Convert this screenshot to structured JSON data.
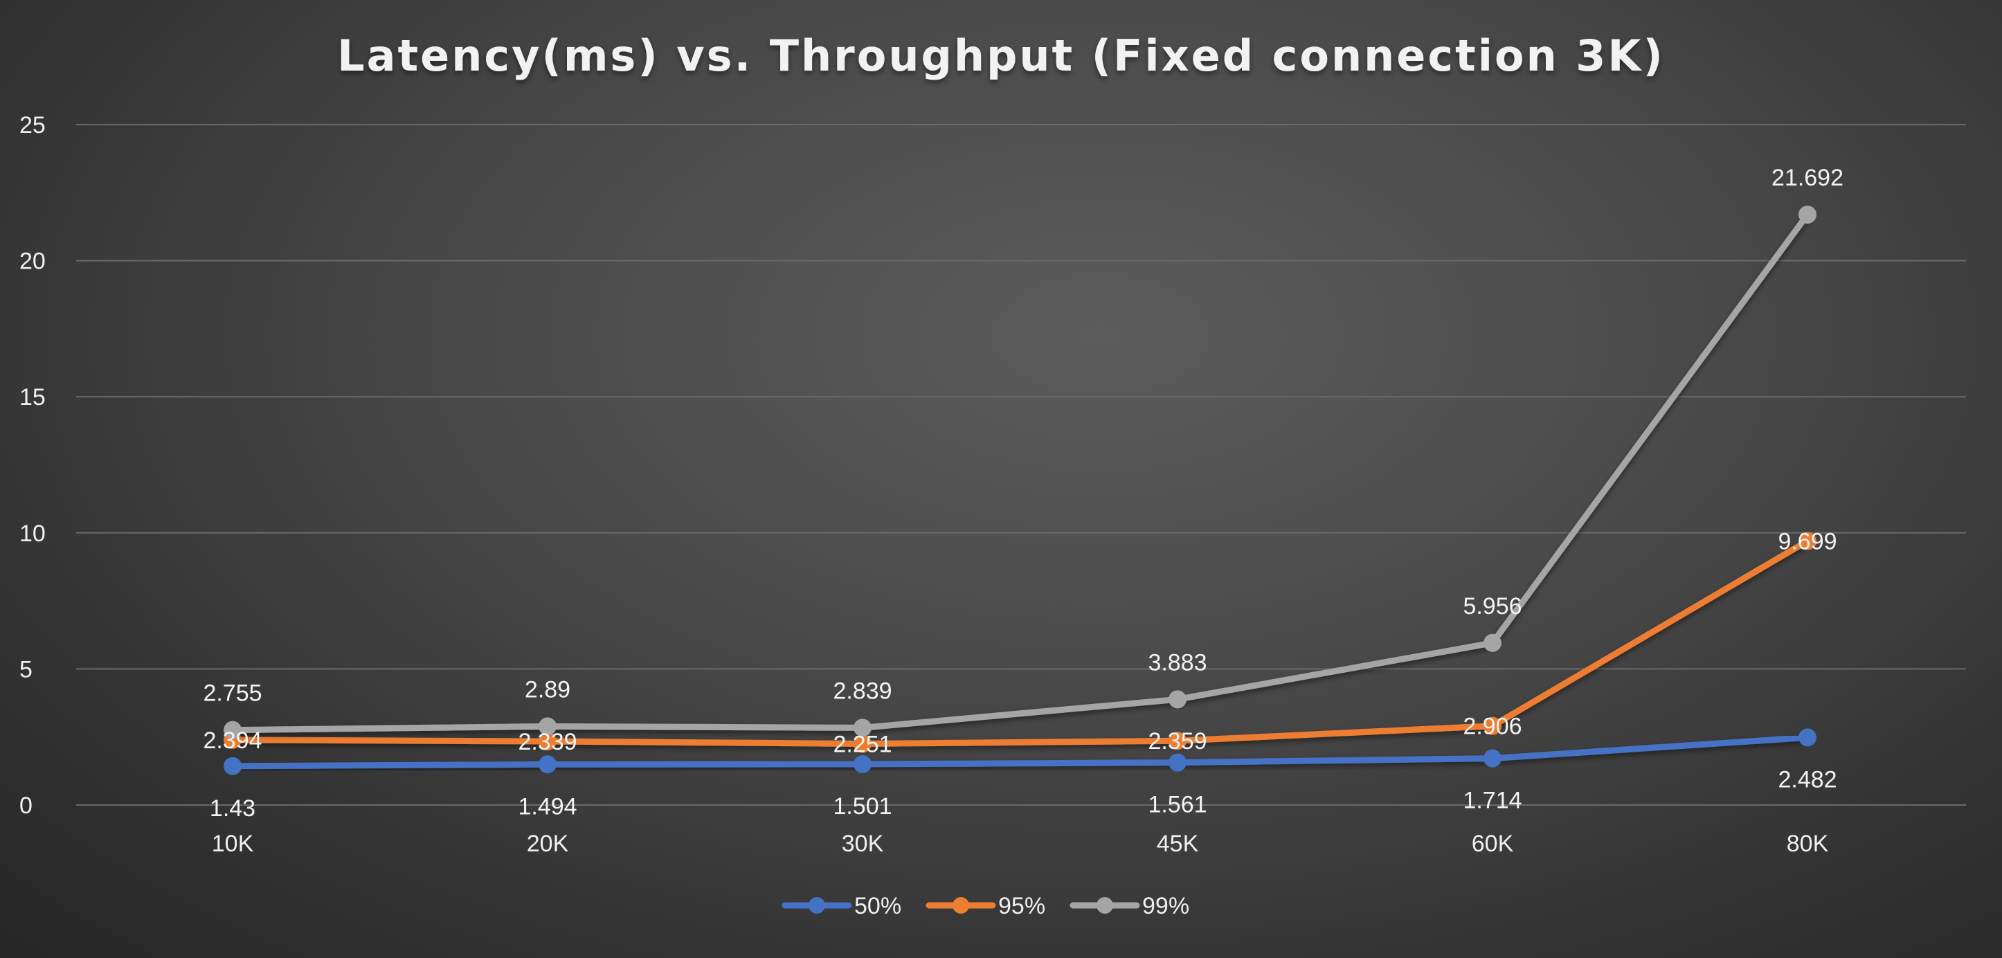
{
  "chart_data": {
    "type": "line",
    "title": "Latency(ms) vs. Throughput (Fixed connection 3K)",
    "xlabel": "",
    "ylabel": "",
    "categories": [
      "10K",
      "20K",
      "30K",
      "45K",
      "60K",
      "80K"
    ],
    "ylim": [
      0,
      25
    ],
    "yticks": [
      0,
      5,
      10,
      15,
      20,
      25
    ],
    "grid": true,
    "legend_position": "bottom",
    "series": [
      {
        "name": "50%",
        "color": "#4472c4",
        "values": [
          1.43,
          1.494,
          1.501,
          1.561,
          1.714,
          2.482
        ],
        "labels": [
          "1.43",
          "1.494",
          "1.501",
          "1.561",
          "1.714",
          "2.482"
        ],
        "label_position": "below"
      },
      {
        "name": "95%",
        "color": "#ed7d31",
        "values": [
          2.394,
          2.339,
          2.251,
          2.359,
          2.906,
          9.699
        ],
        "labels": [
          "2.394",
          "2.339",
          "2.251",
          "2.359",
          "2.906",
          "9.699"
        ],
        "label_position": "center"
      },
      {
        "name": "99%",
        "color": "#a5a5a5",
        "values": [
          2.755,
          2.89,
          2.839,
          3.883,
          5.956,
          21.692
        ],
        "labels": [
          "2.755",
          "2.89",
          "2.839",
          "3.883",
          "5.956",
          "21.692"
        ],
        "label_position": "above"
      }
    ]
  }
}
